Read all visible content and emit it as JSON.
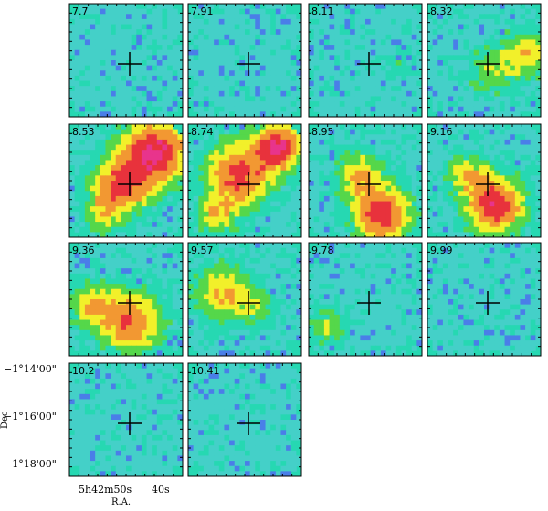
{
  "figure": {
    "type": "channel-map grid",
    "panel_labels": [
      "7.7",
      "7.91",
      "8.11",
      "8.32",
      "8.53",
      "8.74",
      "8.95",
      "9.16",
      "9.36",
      "9.57",
      "9.78",
      "9.99",
      "10.2",
      "10.41"
    ],
    "dec_ticks": [
      "−1°14'00\"",
      "−1°16'00\"",
      "−1°18'00\""
    ],
    "ra_ticks": [
      "5h42m50s",
      "40s"
    ],
    "xlabel": "R.A.",
    "ylabel": "Dec",
    "colors": {
      "base": "#26d8b2",
      "background_variant": "#44d0c8",
      "low": "#4a7ee8",
      "mid_green": "#55d74a",
      "yellow": "#f2f02a",
      "orange": "#f29832",
      "red": "#e8323c",
      "magenta": "#e8348c",
      "white": "#ffffff"
    },
    "reference_marker": "cross"
  }
}
